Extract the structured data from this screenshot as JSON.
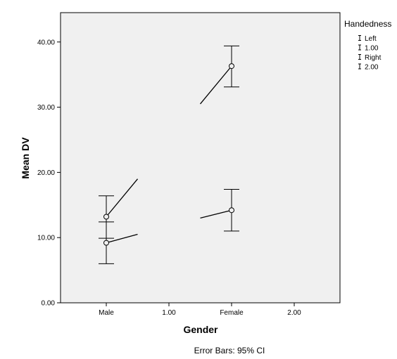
{
  "chart_data": {
    "type": "line",
    "xlabel": "Gender",
    "ylabel": "Mean DV",
    "x_ticks": [
      "Male",
      "1.00",
      "Female",
      "2.00"
    ],
    "y_ticks": [
      "0.00",
      "10.00",
      "20.00",
      "30.00",
      "40.00"
    ],
    "ylim": [
      0,
      44.5
    ],
    "grid": false,
    "legend": {
      "title": "Handedness",
      "placement": "top-right outside",
      "entries": [
        "Left",
        "1.00",
        "Right",
        "2.00"
      ]
    },
    "groups": [
      {
        "category": "Male",
        "markers": [
          {
            "mean": 13.2,
            "ci_low": 9.9,
            "ci_high": 16.4
          },
          {
            "mean": 9.2,
            "ci_low": 6.0,
            "ci_high": 12.4
          }
        ],
        "lines": [
          {
            "from": 13.2,
            "to": 19.0
          },
          {
            "from": 9.2,
            "to": 10.5
          }
        ]
      },
      {
        "category": "Female",
        "markers": [
          {
            "mean": 36.3,
            "ci_low": 33.1,
            "ci_high": 39.4
          },
          {
            "mean": 14.2,
            "ci_low": 11.0,
            "ci_high": 17.4
          }
        ],
        "lines": [
          {
            "from": 30.5,
            "to": 36.3
          },
          {
            "from": 13.0,
            "to": 14.2
          }
        ]
      }
    ],
    "footnote": "Error Bars: 95% CI",
    "colors": {
      "plot_bg": "#f0f0f0",
      "ink": "#000000"
    }
  }
}
